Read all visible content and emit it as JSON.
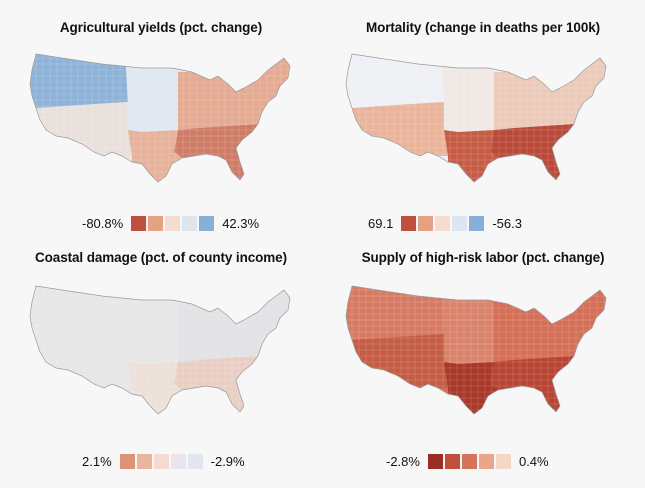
{
  "panels": [
    {
      "title": "Agricultural yields (pct. change)",
      "legend_min": "-80.8%",
      "legend_max": "42.3%",
      "swatches": [
        "#c0503e",
        "#e6a184",
        "#f4ddd0",
        "#dde6f0",
        "#86b0d6"
      ],
      "map_style": {
        "base": "#e9e5e3",
        "regions": [
          {
            "area": "north-west",
            "color": "#8fb3d8"
          },
          {
            "area": "plains",
            "color": "#dfe7ef"
          },
          {
            "area": "south-west",
            "color": "#e9e0dd"
          },
          {
            "area": "east",
            "color": "#e4ab92"
          },
          {
            "area": "south-east",
            "color": "#cf7c66"
          },
          {
            "area": "texas",
            "color": "#e7b29b"
          }
        ]
      }
    },
    {
      "title": "Mortality (change in deaths per 100k)",
      "legend_min": "69.1",
      "legend_max": "-56.3",
      "swatches": [
        "#c0503e",
        "#e6a184",
        "#f4ddd0",
        "#dde6f0",
        "#86b0d6"
      ],
      "map_style": {
        "base": "#edeef2",
        "regions": [
          {
            "area": "north-west",
            "color": "#eef0f5"
          },
          {
            "area": "plains",
            "color": "#f0e8e4"
          },
          {
            "area": "south-west",
            "color": "#eab49b"
          },
          {
            "area": "east",
            "color": "#eccab9"
          },
          {
            "area": "south-east",
            "color": "#b94a3a"
          },
          {
            "area": "texas",
            "color": "#c75c45"
          }
        ]
      }
    },
    {
      "title": "Coastal damage (pct. of county income)",
      "legend_min": "2.1%",
      "legend_max": "-2.9%",
      "swatches": [
        "#dc9377",
        "#ebb49c",
        "#f3dccf",
        "#ece6ec",
        "#e2e6f0"
      ],
      "map_style": {
        "base": "#e7e7e7",
        "regions": [
          {
            "area": "north-west",
            "color": "#e7e7e7"
          },
          {
            "area": "plains",
            "color": "#e7e7e7"
          },
          {
            "area": "south-west",
            "color": "#e7e7e7"
          },
          {
            "area": "east",
            "color": "#e3e3e6"
          },
          {
            "area": "south-east",
            "color": "#e9cfc3"
          },
          {
            "area": "texas",
            "color": "#ece0d9"
          }
        ]
      }
    },
    {
      "title": "Supply of high-risk labor (pct. change)",
      "legend_min": "-2.8%",
      "legend_max": "0.4%",
      "swatches": [
        "#9b2e22",
        "#c0503e",
        "#d6735b",
        "#e9a68c",
        "#f4d8c7"
      ],
      "map_style": {
        "base": "#d36c55",
        "regions": [
          {
            "area": "north-west",
            "color": "#d77a63"
          },
          {
            "area": "plains",
            "color": "#d9836d"
          },
          {
            "area": "south-west",
            "color": "#c45c46"
          },
          {
            "area": "east",
            "color": "#d46f58"
          },
          {
            "area": "south-east",
            "color": "#b84433"
          },
          {
            "area": "texas",
            "color": "#a8382a"
          }
        ]
      }
    }
  ]
}
